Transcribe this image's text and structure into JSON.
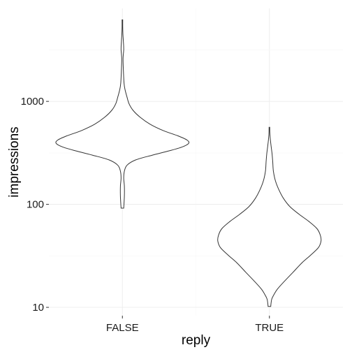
{
  "chart_data": {
    "type": "violin",
    "xlabel": "reply",
    "ylabel": "impressions",
    "categories": [
      "FALSE",
      "TRUE"
    ],
    "y_scale": "log10",
    "y_ticks": [
      10,
      100,
      1000
    ],
    "y_tick_labels": [
      "10",
      "100",
      "1000"
    ],
    "ylim": [
      8.3,
      8000
    ],
    "grid": true,
    "series": [
      {
        "category": "FALSE",
        "min": 92,
        "max": 6200,
        "density_profile": [
          [
            92,
            0.02
          ],
          [
            120,
            0.03
          ],
          [
            150,
            0.03
          ],
          [
            180,
            0.02
          ],
          [
            210,
            0.03
          ],
          [
            240,
            0.07
          ],
          [
            270,
            0.2
          ],
          [
            300,
            0.45
          ],
          [
            330,
            0.7
          ],
          [
            360,
            0.9
          ],
          [
            390,
            1.0
          ],
          [
            420,
            0.98
          ],
          [
            460,
            0.85
          ],
          [
            520,
            0.62
          ],
          [
            600,
            0.42
          ],
          [
            700,
            0.27
          ],
          [
            820,
            0.16
          ],
          [
            950,
            0.1
          ],
          [
            1100,
            0.07
          ],
          [
            1300,
            0.04
          ],
          [
            1500,
            0.025
          ],
          [
            2000,
            0.015
          ],
          [
            2600,
            0.01
          ],
          [
            3200,
            0.02
          ],
          [
            3800,
            0.015
          ],
          [
            4500,
            0.008
          ],
          [
            5300,
            0.005
          ],
          [
            6200,
            0.005
          ]
        ]
      },
      {
        "category": "TRUE",
        "min": 10.2,
        "max": 560,
        "density_profile": [
          [
            10.2,
            0.02
          ],
          [
            11,
            0.025
          ],
          [
            12,
            0.035
          ],
          [
            13,
            0.06
          ],
          [
            15,
            0.12
          ],
          [
            18,
            0.23
          ],
          [
            22,
            0.36
          ],
          [
            27,
            0.49
          ],
          [
            32,
            0.62
          ],
          [
            38,
            0.74
          ],
          [
            44,
            0.78
          ],
          [
            50,
            0.77
          ],
          [
            58,
            0.72
          ],
          [
            68,
            0.6
          ],
          [
            80,
            0.45
          ],
          [
            95,
            0.31
          ],
          [
            115,
            0.21
          ],
          [
            140,
            0.14
          ],
          [
            170,
            0.09
          ],
          [
            210,
            0.06
          ],
          [
            260,
            0.05
          ],
          [
            310,
            0.04
          ],
          [
            370,
            0.025
          ],
          [
            440,
            0.012
          ],
          [
            500,
            0.006
          ],
          [
            560,
            0.005
          ]
        ]
      }
    ]
  }
}
